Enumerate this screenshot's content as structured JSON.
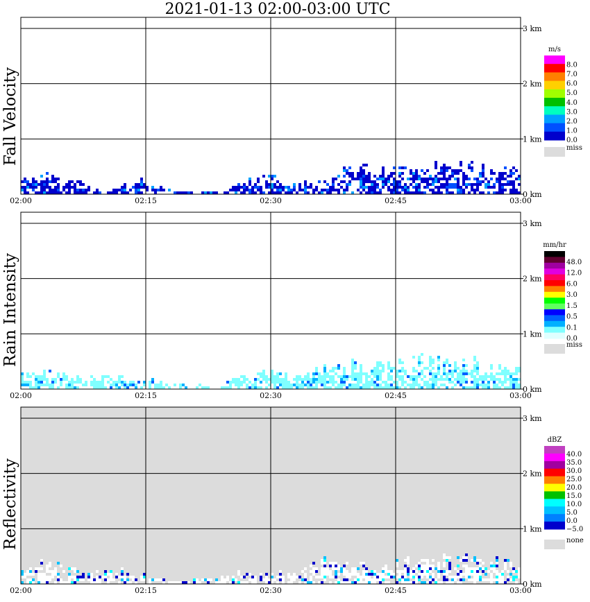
{
  "title": "2021-01-13   02:00-03:00 UTC",
  "x_ticks": [
    "02:00",
    "02:15",
    "02:30",
    "02:45",
    "03:00"
  ],
  "y_ticks": [
    "0 km",
    "1 km",
    "2 km",
    "3 km"
  ],
  "chart_data": [
    {
      "type": "heatmap",
      "title": "Fall Velocity",
      "xlim": [
        "02:00",
        "03:00"
      ],
      "ylim": [
        0,
        3.2
      ],
      "grid": true,
      "background": "#ffffff",
      "colorbar": {
        "unit": "m/s",
        "labels": [
          "8.0",
          "7.0",
          "6.0",
          "5.0",
          "4.0",
          "3.0",
          "2.0",
          "1.0",
          "0.0"
        ],
        "colors": [
          "#ff00ff",
          "#ff0000",
          "#ff8000",
          "#ffd000",
          "#a0ff00",
          "#00c000",
          "#00ffc0",
          "#00a0ff",
          "#0050ff",
          "#0000cc"
        ],
        "missing_label": "miss",
        "missing_color": "#dcdcdc"
      },
      "echo_profile": {
        "minutes": [
          0,
          3,
          6,
          9,
          12,
          15,
          18,
          21,
          24,
          27,
          30,
          33,
          36,
          39,
          42,
          45,
          48,
          51,
          54,
          57,
          60
        ],
        "top_km": [
          0.3,
          0.4,
          0.3,
          0.1,
          0.2,
          0.3,
          0.1,
          0.05,
          0.1,
          0.3,
          0.35,
          0.2,
          0.3,
          0.5,
          0.5,
          0.45,
          0.6,
          0.55,
          0.6,
          0.55,
          0.45
        ]
      }
    },
    {
      "type": "heatmap",
      "title": "Rain Intensity",
      "xlim": [
        "02:00",
        "03:00"
      ],
      "ylim": [
        0,
        3.2
      ],
      "grid": true,
      "background": "#ffffff",
      "colorbar": {
        "unit": "mm/hr",
        "labels": [
          "48.0",
          "12.0",
          "6.0",
          "3.0",
          "1.5",
          "0.5",
          "0.1",
          "0.0"
        ],
        "colors": [
          "#000000",
          "#600030",
          "#a000a0",
          "#e000e0",
          "#ff0060",
          "#ff0000",
          "#ff8000",
          "#ffff00",
          "#00ff00",
          "#60ff60",
          "#0000ff",
          "#0060ff",
          "#00b0ff",
          "#80ffff",
          "#e0ffff"
        ],
        "missing_label": "miss",
        "missing_color": "#dcdcdc"
      },
      "echo_profile": {
        "minutes": [
          0,
          3,
          6,
          9,
          12,
          15,
          18,
          21,
          24,
          27,
          30,
          33,
          36,
          39,
          42,
          45,
          48,
          51,
          54,
          57,
          60
        ],
        "top_km": [
          0.35,
          0.35,
          0.3,
          0.25,
          0.3,
          0.2,
          0.1,
          0.1,
          0.1,
          0.35,
          0.35,
          0.3,
          0.4,
          0.5,
          0.5,
          0.5,
          0.6,
          0.6,
          0.55,
          0.5,
          0.45
        ]
      }
    },
    {
      "type": "heatmap",
      "title": "Reflectivity",
      "xlim": [
        "02:00",
        "03:00"
      ],
      "ylim": [
        0,
        3.2
      ],
      "grid": true,
      "background": "#dcdcdc",
      "colorbar": {
        "unit": "dBZ",
        "labels": [
          "40.0",
          "35.0",
          "30.0",
          "25.0",
          "20.0",
          "15.0",
          "10.0",
          "5.0",
          "0.0",
          "−5.0"
        ],
        "colors": [
          "#c040c0",
          "#ff00ff",
          "#a000a0",
          "#ff0000",
          "#ff8000",
          "#ffff00",
          "#00c000",
          "#00ffff",
          "#00c0ff",
          "#0080ff",
          "#0000cc"
        ],
        "missing_label": "none",
        "missing_color": "#dcdcdc"
      },
      "echo_profile": {
        "minutes": [
          0,
          3,
          6,
          9,
          12,
          15,
          18,
          21,
          24,
          27,
          30,
          33,
          36,
          39,
          42,
          45,
          48,
          51,
          54,
          57,
          60
        ],
        "top_km": [
          0.35,
          0.45,
          0.3,
          0.25,
          0.3,
          0.2,
          0.1,
          0.1,
          0.15,
          0.3,
          0.25,
          0.25,
          0.45,
          0.45,
          0.4,
          0.4,
          0.55,
          0.55,
          0.5,
          0.45,
          0.4
        ]
      }
    }
  ]
}
